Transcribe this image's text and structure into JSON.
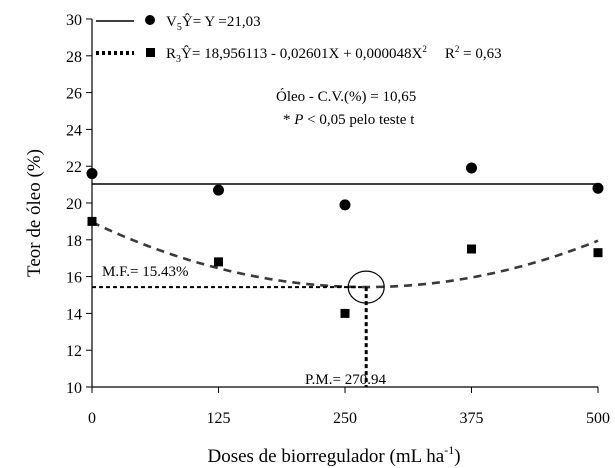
{
  "chart_data": {
    "type": "scatter",
    "xlabel": "Doses de biorregulador (mL ha",
    "xlabel_sup": "-1",
    "xlabel_tail": ")",
    "ylabel": "Teor de óleo (%)",
    "xlim": [
      0,
      500
    ],
    "ylim": [
      10,
      30
    ],
    "x_ticks": [
      0,
      125,
      250,
      375,
      500
    ],
    "y_ticks": [
      10,
      12,
      14,
      16,
      18,
      20,
      22,
      24,
      26,
      28,
      30
    ],
    "series": [
      {
        "marker": "circle",
        "x": [
          0,
          125,
          250,
          375,
          500
        ],
        "y": [
          21.6,
          20.7,
          19.9,
          21.9,
          20.8
        ],
        "fit_type": "constant",
        "fit_value": 21.03,
        "legend": {
          "prefix": "V",
          "sub": "5",
          "yhat": "Ŷ",
          "text": "= Y =21,03"
        }
      },
      {
        "marker": "square",
        "x": [
          0,
          125,
          250,
          375,
          500
        ],
        "y": [
          19.0,
          16.8,
          14.0,
          17.5,
          17.3
        ],
        "fit_type": "quadratic",
        "fit_coefficients": [
          18.956113,
          -0.026011,
          4.8e-05
        ],
        "legend": {
          "prefix": "R",
          "sub": "3",
          "yhat": "Ŷ",
          "text": "= 18,956113 - 0,02601X + 0,000048X",
          "sup": "2",
          "r2": "R",
          "r2_sup": "2",
          "r2_value": " = 0,63"
        }
      }
    ],
    "annotations": {
      "oleo": "Óleo - C.V.(%) = 10,65",
      "p_star": "* ",
      "p_italic": "P",
      "p_rest": " < 0,05 pelo teste t",
      "mf": "M.F.= 15.43%",
      "pm": "P.M.= 270.94"
    },
    "optimum": {
      "x": 270.94,
      "y": 15.43
    },
    "colors": {
      "ink": "#000000",
      "fit_quadratic": "#3a3a3a"
    }
  }
}
